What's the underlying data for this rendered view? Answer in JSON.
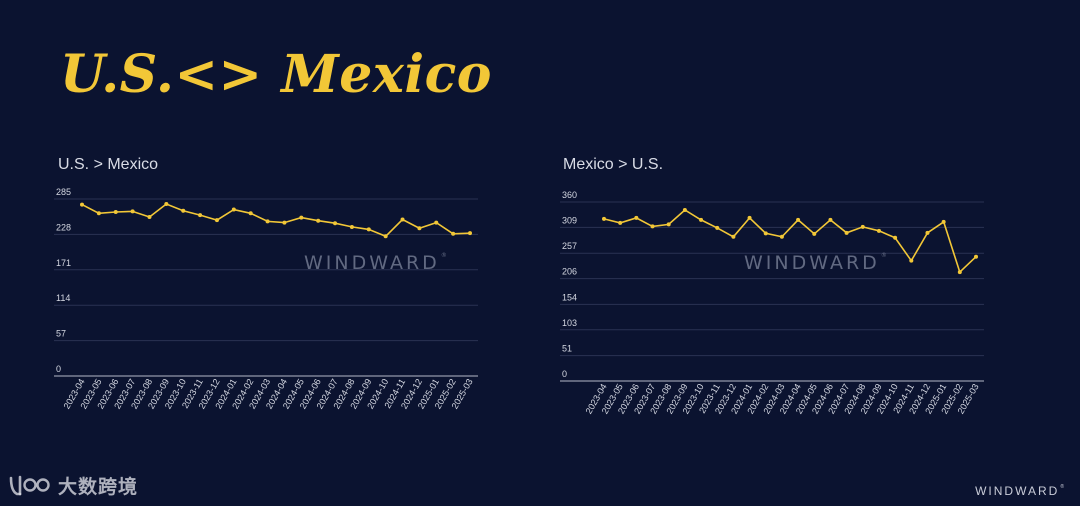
{
  "page": {
    "title": "U.S.<> Mexico",
    "footer_brand": "WINDWARD",
    "source_logo_text": "大数跨境",
    "accent_color": "#f2c737",
    "background_color": "#0b1330"
  },
  "chart_data": [
    {
      "type": "line",
      "title": "U.S. > Mexico",
      "watermark": "WINDWARD",
      "x": [
        "2023-04",
        "2023-05",
        "2023-06",
        "2023-07",
        "2023-08",
        "2023-09",
        "2023-10",
        "2023-11",
        "2023-12",
        "2024-01",
        "2024-02",
        "2024-03",
        "2024-04",
        "2024-05",
        "2024-06",
        "2024-07",
        "2024-08",
        "2024-09",
        "2024-10",
        "2024-11",
        "2024-12",
        "2025-01",
        "2025-02",
        "2025-03"
      ],
      "y_ticks": [
        0,
        57,
        114,
        171,
        228,
        285
      ],
      "ylim": [
        0,
        285
      ],
      "grid": true,
      "series": [
        {
          "values": [
            276,
            262,
            264,
            265,
            256,
            277,
            266,
            259,
            251,
            268,
            262,
            249,
            247,
            255,
            250,
            246,
            240,
            236,
            225,
            252,
            238,
            247,
            229,
            230
          ]
        }
      ]
    },
    {
      "type": "line",
      "title": "Mexico > U.S.",
      "watermark": "WINDWARD",
      "x": [
        "2023-04",
        "2023-05",
        "2023-06",
        "2023-07",
        "2023-08",
        "2023-09",
        "2023-10",
        "2023-11",
        "2023-12",
        "2024-01",
        "2024-02",
        "2024-03",
        "2024-04",
        "2024-05",
        "2024-06",
        "2024-07",
        "2024-08",
        "2024-09",
        "2024-10",
        "2024-11",
        "2024-12",
        "2025-01",
        "2025-02",
        "2025-03"
      ],
      "y_ticks": [
        0,
        51,
        103,
        154,
        206,
        257,
        309,
        360
      ],
      "ylim": [
        0,
        360
      ],
      "grid": true,
      "series": [
        {
          "values": [
            326,
            318,
            328,
            311,
            315,
            344,
            324,
            308,
            290,
            328,
            297,
            290,
            324,
            296,
            324,
            298,
            310,
            302,
            288,
            242,
            298,
            320,
            219,
            250
          ]
        }
      ]
    }
  ]
}
